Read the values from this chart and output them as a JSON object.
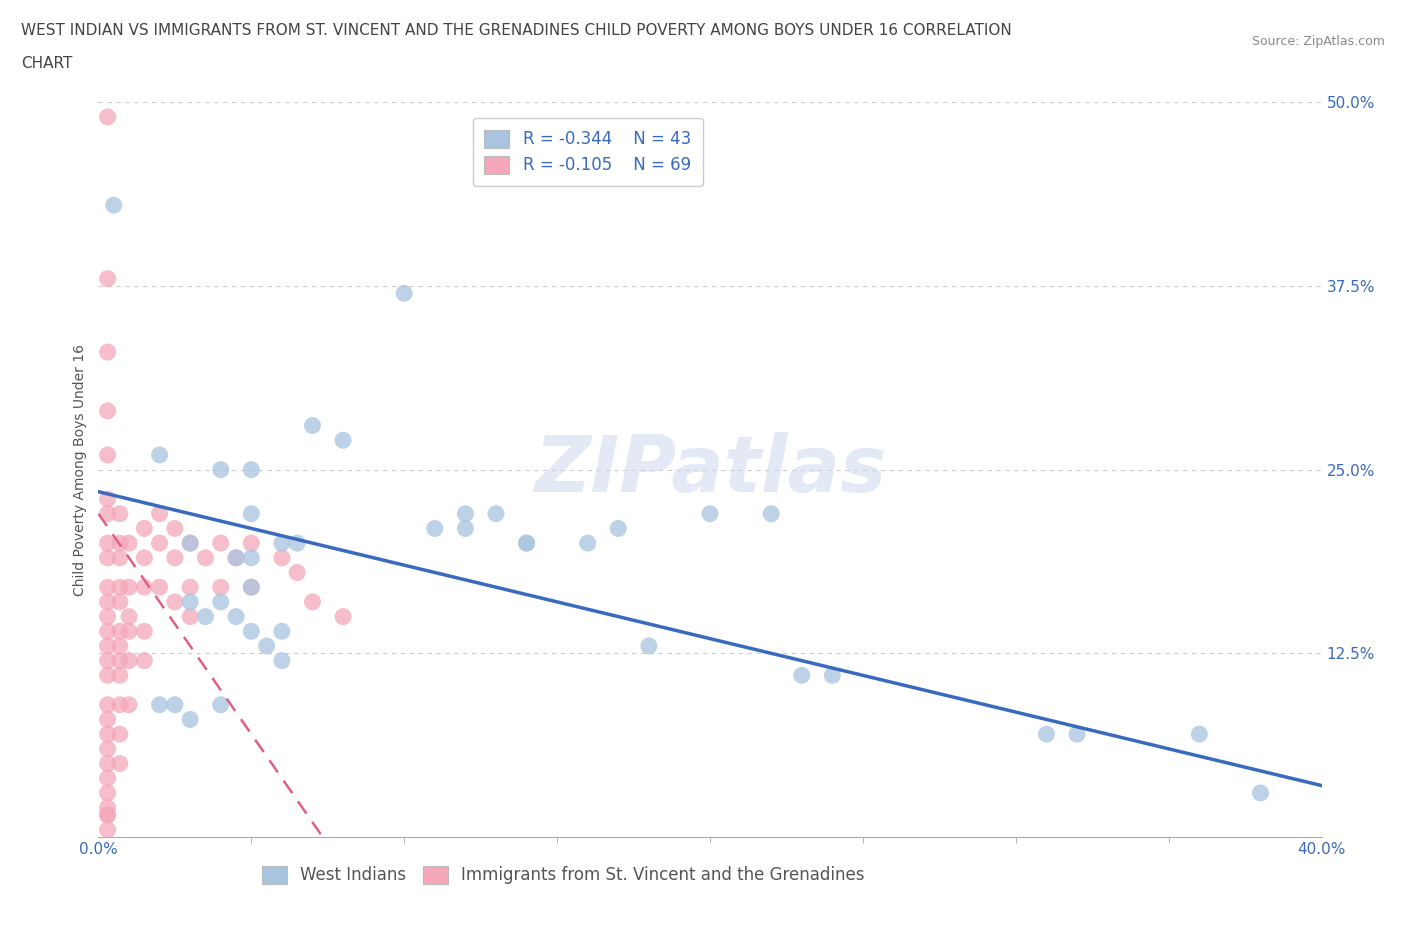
{
  "title_line1": "WEST INDIAN VS IMMIGRANTS FROM ST. VINCENT AND THE GRENADINES CHILD POVERTY AMONG BOYS UNDER 16 CORRELATION",
  "title_line2": "CHART",
  "source_text": "Source: ZipAtlas.com",
  "ylabel": "Child Poverty Among Boys Under 16",
  "xlim": [
    0.0,
    0.4
  ],
  "ylim": [
    0.0,
    0.5
  ],
  "xtick_labels": [
    "0.0%",
    "40.0%"
  ],
  "xtick_vals": [
    0.0,
    0.4
  ],
  "ytick_labels": [
    "12.5%",
    "25.0%",
    "37.5%",
    "50.0%"
  ],
  "ytick_vals": [
    0.125,
    0.25,
    0.375,
    0.5
  ],
  "r_west_indian": "-0.344",
  "n_west_indian": "43",
  "r_svg": "-0.105",
  "n_svg": "69",
  "blue_color": "#a8c4e0",
  "pink_color": "#f4a7b9",
  "trendline_blue": "#3a6abf",
  "trendline_pink": "#e06080",
  "background_color": "#ffffff",
  "grid_color": "#cccccc",
  "west_indian_x": [
    0.005,
    0.02,
    0.02,
    0.025,
    0.03,
    0.03,
    0.03,
    0.035,
    0.04,
    0.04,
    0.04,
    0.045,
    0.045,
    0.05,
    0.05,
    0.05,
    0.05,
    0.05,
    0.055,
    0.06,
    0.06,
    0.06,
    0.065,
    0.07,
    0.08,
    0.1,
    0.11,
    0.12,
    0.12,
    0.13,
    0.14,
    0.14,
    0.16,
    0.17,
    0.18,
    0.2,
    0.22,
    0.23,
    0.24,
    0.31,
    0.32,
    0.36,
    0.38
  ],
  "west_indian_y": [
    0.43,
    0.26,
    0.09,
    0.09,
    0.08,
    0.16,
    0.2,
    0.15,
    0.09,
    0.16,
    0.25,
    0.15,
    0.19,
    0.14,
    0.17,
    0.19,
    0.22,
    0.25,
    0.13,
    0.12,
    0.14,
    0.2,
    0.2,
    0.28,
    0.27,
    0.37,
    0.21,
    0.21,
    0.22,
    0.22,
    0.2,
    0.2,
    0.2,
    0.21,
    0.13,
    0.22,
    0.22,
    0.11,
    0.11,
    0.07,
    0.07,
    0.07,
    0.03
  ],
  "svg_x": [
    0.003,
    0.003,
    0.003,
    0.003,
    0.003,
    0.003,
    0.003,
    0.003,
    0.003,
    0.003,
    0.003,
    0.003,
    0.003,
    0.003,
    0.003,
    0.003,
    0.003,
    0.003,
    0.003,
    0.003,
    0.003,
    0.003,
    0.003,
    0.003,
    0.003,
    0.003,
    0.003,
    0.007,
    0.007,
    0.007,
    0.007,
    0.007,
    0.007,
    0.007,
    0.007,
    0.007,
    0.007,
    0.007,
    0.007,
    0.01,
    0.01,
    0.01,
    0.01,
    0.01,
    0.01,
    0.015,
    0.015,
    0.015,
    0.015,
    0.015,
    0.02,
    0.02,
    0.02,
    0.025,
    0.025,
    0.025,
    0.03,
    0.03,
    0.03,
    0.035,
    0.04,
    0.04,
    0.045,
    0.05,
    0.05,
    0.06,
    0.065,
    0.07,
    0.08
  ],
  "svg_y": [
    0.49,
    0.38,
    0.33,
    0.29,
    0.26,
    0.23,
    0.22,
    0.2,
    0.19,
    0.17,
    0.16,
    0.15,
    0.14,
    0.13,
    0.12,
    0.11,
    0.09,
    0.08,
    0.07,
    0.06,
    0.05,
    0.04,
    0.03,
    0.02,
    0.015,
    0.015,
    0.005,
    0.22,
    0.2,
    0.19,
    0.17,
    0.16,
    0.14,
    0.13,
    0.12,
    0.11,
    0.09,
    0.07,
    0.05,
    0.2,
    0.17,
    0.15,
    0.14,
    0.12,
    0.09,
    0.21,
    0.19,
    0.17,
    0.14,
    0.12,
    0.22,
    0.2,
    0.17,
    0.21,
    0.19,
    0.16,
    0.2,
    0.17,
    0.15,
    0.19,
    0.2,
    0.17,
    0.19,
    0.2,
    0.17,
    0.19,
    0.18,
    0.16,
    0.15
  ],
  "watermark": "ZIPatlas",
  "legend_R_color": "#3a6abf",
  "title_fontsize": 11,
  "axis_label_fontsize": 10,
  "tick_fontsize": 11,
  "legend_fontsize": 12
}
